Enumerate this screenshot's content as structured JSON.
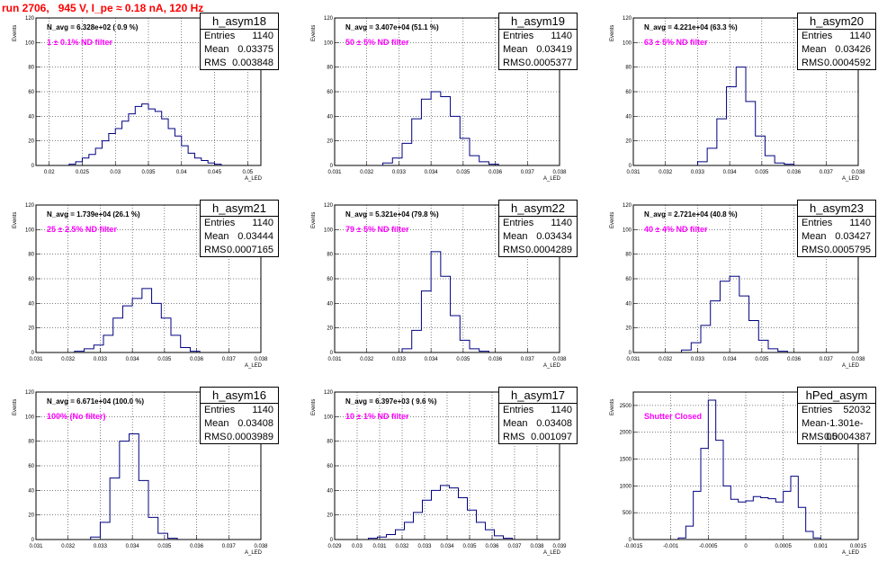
{
  "run_title": "run 2706,   945 V, I_pe ≈ 0.18 nA, 120 Hz",
  "chart_data": [
    {
      "type": "bar",
      "histogram": true,
      "title": "h_asym18",
      "stats": {
        "entries_label": "Entries",
        "entries": "1140",
        "mean_label": "Mean",
        "mean": "0.03375",
        "rms_label": "RMS",
        "rms": "0.003848"
      },
      "n_avg": "N_avg = 6.328e+02 ( 0.9 %)",
      "filter": "1 ± 0.1% ND filter",
      "xlabel": "A_LED",
      "ylabel": "Events",
      "xlim": [
        0.018,
        0.052
      ],
      "ylim": [
        0,
        120
      ],
      "xticks": [
        0.02,
        0.025,
        0.03,
        0.035,
        0.04,
        0.045,
        0.05
      ],
      "xtick_labels": [
        "0.02",
        "0.025",
        "0.03",
        "0.035",
        "0.04",
        "0.045",
        "0.05"
      ],
      "yticks": [
        0,
        20,
        40,
        60,
        80,
        100,
        120
      ],
      "ytick_labels": [
        "0",
        "20",
        "40",
        "60",
        "80",
        "100",
        "120"
      ],
      "x": [
        0.0235,
        0.0245,
        0.0255,
        0.0265,
        0.0275,
        0.0285,
        0.0295,
        0.0305,
        0.0315,
        0.0325,
        0.0335,
        0.0345,
        0.0355,
        0.0365,
        0.0375,
        0.0385,
        0.0395,
        0.0405,
        0.0415,
        0.0425,
        0.0435,
        0.0445,
        0.0455
      ],
      "values": [
        1,
        3,
        6,
        9,
        14,
        20,
        26,
        30,
        36,
        42,
        48,
        50,
        46,
        44,
        38,
        30,
        24,
        16,
        10,
        6,
        4,
        2,
        1
      ]
    },
    {
      "type": "bar",
      "histogram": true,
      "title": "h_asym19",
      "stats": {
        "entries_label": "Entries",
        "entries": "1140",
        "mean_label": "Mean",
        "mean": "0.03419",
        "rms_label": "RMS",
        "rms": "0.0005377"
      },
      "n_avg": "N_avg = 3.407e+04 (51.1 %)",
      "filter": "50 ± 5% ND filter",
      "xlabel": "A_LED",
      "ylabel": "Events",
      "xlim": [
        0.031,
        0.038
      ],
      "ylim": [
        0,
        120
      ],
      "xticks": [
        0.031,
        0.032,
        0.033,
        0.034,
        0.035,
        0.036,
        0.037,
        0.038
      ],
      "xtick_labels": [
        "0.031",
        "0.032",
        "0.033",
        "0.034",
        "0.035",
        "0.036",
        "0.037",
        "0.038"
      ],
      "yticks": [
        0,
        20,
        40,
        60,
        80,
        100,
        120
      ],
      "ytick_labels": [
        "0",
        "20",
        "40",
        "60",
        "80",
        "100",
        "120"
      ],
      "x": [
        0.03265,
        0.03295,
        0.03325,
        0.03355,
        0.03385,
        0.03415,
        0.03445,
        0.03475,
        0.03505,
        0.03535,
        0.03565,
        0.03595
      ],
      "values": [
        2,
        6,
        18,
        38,
        54,
        60,
        56,
        40,
        22,
        8,
        3,
        1
      ]
    },
    {
      "type": "bar",
      "histogram": true,
      "title": "h_asym20",
      "stats": {
        "entries_label": "Entries",
        "entries": "1140",
        "mean_label": "Mean",
        "mean": "0.03426",
        "rms_label": "RMS",
        "rms": "0.0004592"
      },
      "n_avg": "N_avg = 4.221e+04 (63.3 %)",
      "filter": "63 ± 5% ND filter",
      "xlabel": "A_LED",
      "ylabel": "Events",
      "xlim": [
        0.031,
        0.038
      ],
      "ylim": [
        0,
        120
      ],
      "xticks": [
        0.031,
        0.032,
        0.033,
        0.034,
        0.035,
        0.036,
        0.037,
        0.038
      ],
      "xtick_labels": [
        "0.031",
        "0.032",
        "0.033",
        "0.034",
        "0.035",
        "0.036",
        "0.037",
        "0.038"
      ],
      "yticks": [
        0,
        20,
        40,
        60,
        80,
        100,
        120
      ],
      "ytick_labels": [
        "0",
        "20",
        "40",
        "60",
        "80",
        "100",
        "120"
      ],
      "x": [
        0.03315,
        0.03345,
        0.03375,
        0.03405,
        0.03435,
        0.03465,
        0.03495,
        0.03525,
        0.03555,
        0.03585
      ],
      "values": [
        3,
        14,
        38,
        64,
        80,
        52,
        24,
        8,
        2,
        1
      ]
    },
    {
      "type": "bar",
      "histogram": true,
      "title": "h_asym21",
      "stats": {
        "entries_label": "Entries",
        "entries": "1140",
        "mean_label": "Mean",
        "mean": "0.03444",
        "rms_label": "RMS",
        "rms": "0.0007165"
      },
      "n_avg": "N_avg = 1.739e+04 (26.1 %)",
      "filter": "25 ± 2.5% ND filter",
      "xlabel": "A_LED",
      "ylabel": "Events",
      "xlim": [
        0.031,
        0.038
      ],
      "ylim": [
        0,
        120
      ],
      "xticks": [
        0.031,
        0.032,
        0.033,
        0.034,
        0.035,
        0.036,
        0.037,
        0.038
      ],
      "xtick_labels": [
        "0.031",
        "0.032",
        "0.033",
        "0.034",
        "0.035",
        "0.036",
        "0.037",
        "0.038"
      ],
      "yticks": [
        0,
        20,
        40,
        60,
        80,
        100,
        120
      ],
      "ytick_labels": [
        "0",
        "20",
        "40",
        "60",
        "80",
        "100",
        "120"
      ],
      "x": [
        0.03235,
        0.03265,
        0.03295,
        0.03325,
        0.03355,
        0.03385,
        0.03415,
        0.03445,
        0.03475,
        0.03505,
        0.03535,
        0.03565,
        0.03595
      ],
      "values": [
        1,
        3,
        6,
        14,
        28,
        38,
        44,
        52,
        40,
        28,
        14,
        4,
        1
      ]
    },
    {
      "type": "bar",
      "histogram": true,
      "title": "h_asym22",
      "stats": {
        "entries_label": "Entries",
        "entries": "1140",
        "mean_label": "Mean",
        "mean": "0.03434",
        "rms_label": "RMS",
        "rms": "0.0004289"
      },
      "n_avg": "N_avg = 5.321e+04 (79.8 %)",
      "filter": "79 ± 5% ND filter",
      "xlabel": "A_LED",
      "ylabel": "Events",
      "xlim": [
        0.031,
        0.038
      ],
      "ylim": [
        0,
        120
      ],
      "xticks": [
        0.031,
        0.032,
        0.033,
        0.034,
        0.035,
        0.036,
        0.037,
        0.038
      ],
      "xtick_labels": [
        "0.031",
        "0.032",
        "0.033",
        "0.034",
        "0.035",
        "0.036",
        "0.037",
        "0.038"
      ],
      "yticks": [
        0,
        20,
        40,
        60,
        80,
        100,
        120
      ],
      "ytick_labels": [
        "0",
        "20",
        "40",
        "60",
        "80",
        "100",
        "120"
      ],
      "x": [
        0.03325,
        0.03355,
        0.03385,
        0.03415,
        0.03445,
        0.03475,
        0.03505,
        0.03535,
        0.03565
      ],
      "values": [
        3,
        18,
        50,
        82,
        62,
        30,
        10,
        3,
        1
      ]
    },
    {
      "type": "bar",
      "histogram": true,
      "title": "h_asym23",
      "stats": {
        "entries_label": "Entries",
        "entries": "1140",
        "mean_label": "Mean",
        "mean": "0.03427",
        "rms_label": "RMS",
        "rms": "0.0005795"
      },
      "n_avg": "N_avg = 2.721e+04 (40.8 %)",
      "filter": "40 ± 4% ND filter",
      "xlabel": "A_LED",
      "ylabel": "Events",
      "xlim": [
        0.031,
        0.038
      ],
      "ylim": [
        0,
        120
      ],
      "xticks": [
        0.031,
        0.032,
        0.033,
        0.034,
        0.035,
        0.036,
        0.037,
        0.038
      ],
      "xtick_labels": [
        "0.031",
        "0.032",
        "0.033",
        "0.034",
        "0.035",
        "0.036",
        "0.037",
        "0.038"
      ],
      "yticks": [
        0,
        20,
        40,
        60,
        80,
        100,
        120
      ],
      "ytick_labels": [
        "0",
        "20",
        "40",
        "60",
        "80",
        "100",
        "120"
      ],
      "x": [
        0.03265,
        0.03295,
        0.03325,
        0.03355,
        0.03385,
        0.03415,
        0.03445,
        0.03475,
        0.03505,
        0.03535,
        0.03565
      ],
      "values": [
        2,
        8,
        22,
        42,
        58,
        62,
        46,
        26,
        10,
        3,
        1
      ]
    },
    {
      "type": "bar",
      "histogram": true,
      "title": "h_asym16",
      "stats": {
        "entries_label": "Entries",
        "entries": "1140",
        "mean_label": "Mean",
        "mean": "0.03408",
        "rms_label": "RMS",
        "rms": "0.0003989"
      },
      "n_avg": "N_avg = 6.671e+04 (100.0 %)",
      "filter": "100% (No filter)",
      "xlabel": "A_LED",
      "ylabel": "Events",
      "xlim": [
        0.031,
        0.038
      ],
      "ylim": [
        0,
        120
      ],
      "xticks": [
        0.031,
        0.032,
        0.033,
        0.034,
        0.035,
        0.036,
        0.037,
        0.038
      ],
      "xtick_labels": [
        "0.031",
        "0.032",
        "0.033",
        "0.034",
        "0.035",
        "0.036",
        "0.037",
        "0.038"
      ],
      "yticks": [
        0,
        20,
        40,
        60,
        80,
        100,
        120
      ],
      "ytick_labels": [
        "0",
        "20",
        "40",
        "60",
        "80",
        "100",
        "120"
      ],
      "x": [
        0.03285,
        0.03315,
        0.03345,
        0.03375,
        0.03405,
        0.03435,
        0.03465,
        0.03495,
        0.03525
      ],
      "values": [
        2,
        14,
        50,
        80,
        86,
        48,
        18,
        5,
        1
      ]
    },
    {
      "type": "bar",
      "histogram": true,
      "title": "h_asym17",
      "stats": {
        "entries_label": "Entries",
        "entries": "1140",
        "mean_label": "Mean",
        "mean": "0.03408",
        "rms_label": "RMS",
        "rms": "0.001097"
      },
      "n_avg": "N_avg = 6.397e+03 ( 9.6 %)",
      "filter": "10 ± 1% ND filter",
      "xlabel": "A_LED",
      "ylabel": "Events",
      "xlim": [
        0.029,
        0.039
      ],
      "ylim": [
        0,
        120
      ],
      "xticks": [
        0.029,
        0.03,
        0.031,
        0.032,
        0.033,
        0.034,
        0.035,
        0.036,
        0.037,
        0.038,
        0.039
      ],
      "xtick_labels": [
        "0.029",
        "0.03",
        "0.031",
        "0.032",
        "0.033",
        "0.034",
        "0.035",
        "0.036",
        "0.037",
        "0.038",
        "0.039"
      ],
      "yticks": [
        0,
        20,
        40,
        60,
        80,
        100,
        120
      ],
      "ytick_labels": [
        "0",
        "20",
        "40",
        "60",
        "80",
        "100",
        "120"
      ],
      "x": [
        0.0307,
        0.0311,
        0.0315,
        0.0319,
        0.0323,
        0.0327,
        0.0331,
        0.0335,
        0.0339,
        0.0343,
        0.0347,
        0.0351,
        0.0355,
        0.0359,
        0.0363,
        0.0367
      ],
      "values": [
        1,
        2,
        4,
        8,
        14,
        22,
        32,
        40,
        44,
        42,
        34,
        24,
        14,
        8,
        3,
        1
      ]
    },
    {
      "type": "bar",
      "histogram": true,
      "title": "hPed_asym",
      "stats": {
        "entries_label": "Entries",
        "entries": "52032",
        "mean_label": "Mean",
        "mean": "-1.301e-05",
        "rms_label": "RMS",
        "rms": "0.0004387"
      },
      "n_avg": "",
      "filter": "Shutter Closed",
      "xlabel": "A_LED",
      "ylabel": "Events",
      "xlim": [
        -0.0015,
        0.0015
      ],
      "ylim": [
        0,
        2750
      ],
      "xticks": [
        -0.0015,
        -0.001,
        -0.0005,
        0,
        0.0005,
        0.001,
        0.0015
      ],
      "xtick_labels": [
        "-0.0015",
        "-0.001",
        "-0.0005",
        "0",
        "0.0005",
        "0.001",
        "0.0015"
      ],
      "yticks": [
        0,
        500,
        1000,
        1500,
        2000,
        2500
      ],
      "ytick_labels": [
        "0",
        "500",
        "1000",
        "1500",
        "2000",
        "2500"
      ],
      "x": [
        -0.00085,
        -0.00075,
        -0.00065,
        -0.00055,
        -0.00045,
        -0.00035,
        -0.00025,
        -0.00015,
        -5e-05,
        5e-05,
        0.00015,
        0.00025,
        0.00035,
        0.00045,
        0.00055,
        0.00065,
        0.00075,
        0.00085,
        0.00095
      ],
      "values": [
        30,
        250,
        900,
        1700,
        2600,
        1850,
        1000,
        750,
        700,
        720,
        800,
        780,
        760,
        700,
        900,
        1180,
        600,
        150,
        30
      ]
    }
  ]
}
